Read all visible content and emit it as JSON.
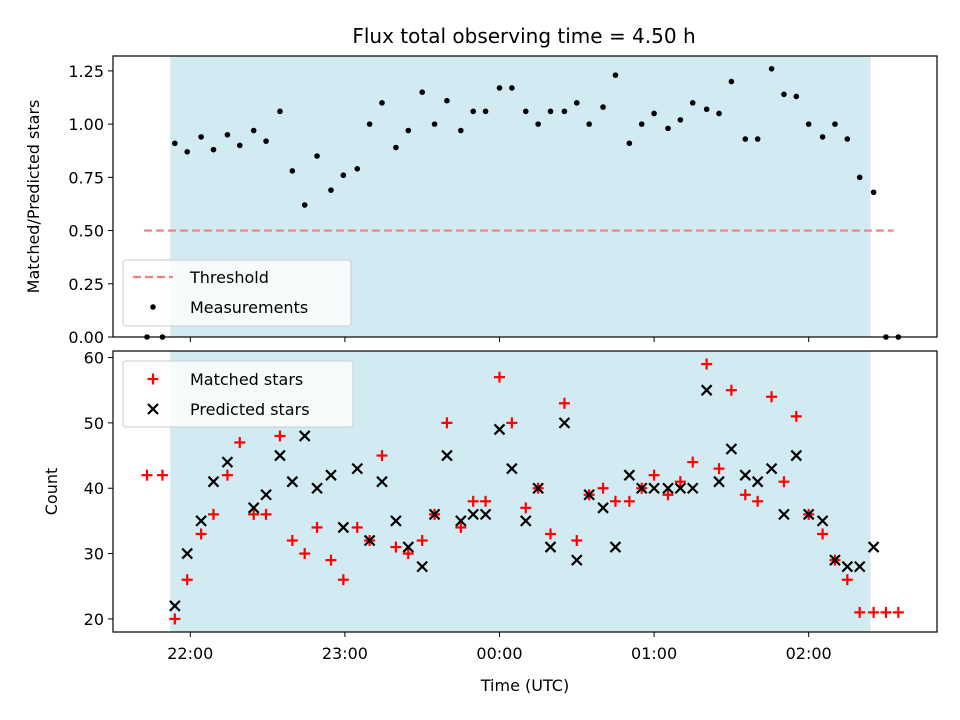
{
  "chart_data": [
    {
      "type": "scatter",
      "title": "Flux total observing time = 4.50 h",
      "ylabel": "Matched/Predicted stars",
      "xlabel": "",
      "ylim": [
        0,
        1.32
      ],
      "yticks": [
        0.0,
        0.25,
        0.5,
        0.75,
        1.0,
        1.25
      ],
      "ytick_labels": [
        "0.00",
        "0.25",
        "0.50",
        "0.75",
        "1.00",
        "1.25"
      ],
      "shaded_region": {
        "x_start_hours": 21.87,
        "x_end_hours": 26.4,
        "color": "#add8e6"
      },
      "threshold": {
        "name": "Threshold",
        "value": 0.5,
        "x_start_hours": 21.7,
        "x_end_hours": 26.55,
        "color": "#f08080"
      },
      "legend_position": "lower-left",
      "series": [
        {
          "name": "Measurements",
          "color": "#000000",
          "x_time_hours": [
            21.72,
            21.82,
            21.9,
            21.98,
            22.07,
            22.15,
            22.24,
            22.32,
            22.41,
            22.49,
            22.58,
            22.66,
            22.74,
            22.82,
            22.91,
            22.99,
            23.08,
            23.16,
            23.24,
            23.33,
            23.41,
            23.5,
            23.58,
            23.66,
            23.75,
            23.83,
            23.91,
            24.0,
            24.08,
            24.17,
            24.25,
            24.33,
            24.42,
            24.5,
            24.58,
            24.67,
            24.75,
            24.84,
            24.92,
            25.0,
            25.09,
            25.17,
            25.25,
            25.34,
            25.42,
            25.5,
            25.59,
            25.67,
            25.76,
            25.84,
            25.92,
            26.0,
            26.09,
            26.17,
            26.25,
            26.33,
            26.42,
            26.5,
            26.58
          ],
          "y": [
            0.0,
            0.0,
            0.91,
            0.87,
            0.94,
            0.88,
            0.95,
            0.9,
            0.97,
            0.92,
            1.06,
            0.78,
            0.62,
            0.85,
            0.69,
            0.76,
            0.79,
            1.0,
            1.1,
            0.89,
            0.97,
            1.15,
            1.0,
            1.11,
            0.97,
            1.06,
            1.06,
            1.17,
            1.17,
            1.06,
            1.0,
            1.06,
            1.06,
            1.1,
            1.0,
            1.08,
            1.23,
            0.91,
            1.0,
            1.05,
            0.98,
            1.02,
            1.1,
            1.07,
            1.05,
            1.2,
            0.93,
            0.93,
            1.26,
            1.14,
            1.13,
            1.0,
            0.94,
            1.0,
            0.93,
            0.75,
            0.68,
            0.0,
            0.0
          ]
        }
      ]
    },
    {
      "type": "scatter",
      "xlabel": "Time (UTC)",
      "ylabel": "Count",
      "ylim": [
        18,
        61
      ],
      "yticks": [
        20,
        30,
        40,
        50,
        60
      ],
      "ytick_labels": [
        "20",
        "30",
        "40",
        "50",
        "60"
      ],
      "xlim_hours": [
        21.5,
        26.83
      ],
      "xticks_hours": [
        22,
        23,
        24,
        25,
        26
      ],
      "xtick_labels": [
        "22:00",
        "23:00",
        "00:00",
        "01:00",
        "02:00"
      ],
      "shaded_region": {
        "x_start_hours": 21.87,
        "x_end_hours": 26.4,
        "color": "#add8e6"
      },
      "legend_position": "upper-left",
      "series": [
        {
          "name": "Matched stars",
          "marker": "+",
          "color": "#ff0000",
          "x_time_hours": [
            21.72,
            21.82,
            21.9,
            21.98,
            22.07,
            22.15,
            22.24,
            22.32,
            22.41,
            22.49,
            22.58,
            22.66,
            22.74,
            22.82,
            22.91,
            22.99,
            23.08,
            23.16,
            23.24,
            23.33,
            23.41,
            23.5,
            23.58,
            23.66,
            23.75,
            23.83,
            23.91,
            24.0,
            24.08,
            24.17,
            24.25,
            24.33,
            24.42,
            24.5,
            24.58,
            24.67,
            24.75,
            24.84,
            24.92,
            25.0,
            25.09,
            25.17,
            25.25,
            25.34,
            25.42,
            25.5,
            25.59,
            25.67,
            25.76,
            25.84,
            25.92,
            26.0,
            26.09,
            26.17,
            26.25,
            26.33,
            26.42,
            26.5,
            26.58
          ],
          "y": [
            42,
            42,
            20,
            26,
            33,
            36,
            42,
            47,
            36,
            36,
            48,
            32,
            30,
            34,
            29,
            26,
            34,
            32,
            45,
            31,
            30,
            32,
            36,
            50,
            34,
            38,
            38,
            57,
            50,
            37,
            40,
            33,
            53,
            32,
            39,
            40,
            38,
            38,
            40,
            42,
            39,
            41,
            44,
            59,
            43,
            55,
            39,
            38,
            54,
            41,
            51,
            36,
            33,
            29,
            26,
            21,
            21,
            21,
            21
          ]
        },
        {
          "name": "Predicted stars",
          "marker": "x",
          "color": "#000000",
          "x_time_hours": [
            21.9,
            21.98,
            22.07,
            22.15,
            22.24,
            22.41,
            22.49,
            22.58,
            22.66,
            22.74,
            22.82,
            22.91,
            22.99,
            23.08,
            23.16,
            23.24,
            23.33,
            23.41,
            23.5,
            23.58,
            23.66,
            23.75,
            23.83,
            23.91,
            24.0,
            24.08,
            24.17,
            24.25,
            24.33,
            24.42,
            24.5,
            24.58,
            24.67,
            24.75,
            24.84,
            24.92,
            25.0,
            25.09,
            25.17,
            25.25,
            25.34,
            25.42,
            25.5,
            25.59,
            25.67,
            25.76,
            25.84,
            25.92,
            26.0,
            26.09,
            26.17,
            26.25,
            26.33,
            26.42
          ],
          "y": [
            22,
            30,
            35,
            41,
            44,
            37,
            39,
            45,
            41,
            48,
            40,
            42,
            34,
            43,
            32,
            41,
            35,
            31,
            28,
            36,
            45,
            35,
            36,
            36,
            49,
            43,
            35,
            40,
            31,
            50,
            29,
            39,
            37,
            31,
            42,
            40,
            40,
            40,
            40,
            40,
            55,
            41,
            46,
            42,
            41,
            43,
            36,
            45,
            36,
            35,
            29,
            28,
            28,
            31
          ]
        }
      ]
    }
  ]
}
